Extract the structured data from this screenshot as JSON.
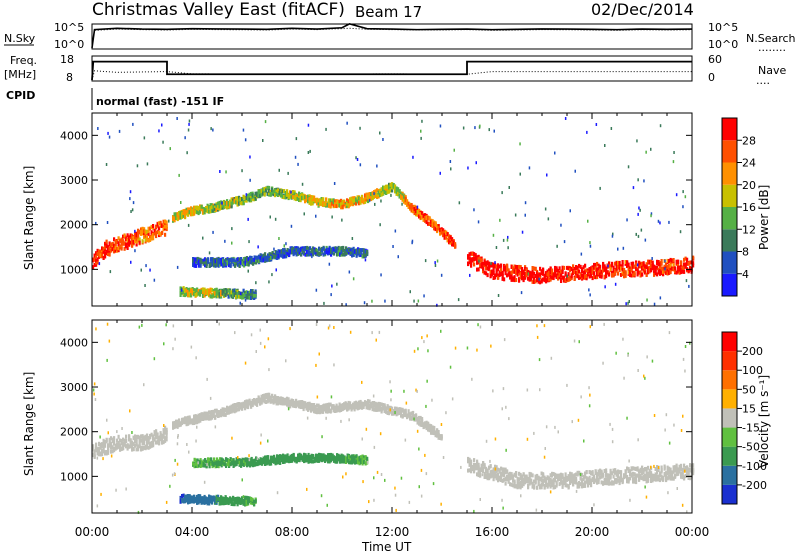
{
  "header": {
    "station": "Christmas Valley East (fitACF)",
    "beam": "Beam 17",
    "date": "02/Dec/2014"
  },
  "top_panels": {
    "nsky_label": "N.Sky",
    "nsky_max": "10^5",
    "nsky_min": "10^0",
    "nsearch_label": "N.Search",
    "nsearch_legend": "........",
    "freq_label_1": "Freq.",
    "freq_label_2": "[MHz]",
    "freq_max": "18",
    "freq_min": "8",
    "nave_label": "Nave",
    "nave_legend": "....",
    "nave_max": "60",
    "nave_min": "0",
    "cpid_label": "CPID",
    "cpid_text": "normal (fast) -151 IF"
  },
  "axes": {
    "ylabel": "Slant Range [km]",
    "xlabel": "Time UT",
    "xticks": [
      "00:00",
      "04:00",
      "08:00",
      "12:00",
      "16:00",
      "20:00",
      "00:00"
    ],
    "yticks": [
      "1000",
      "2000",
      "3000",
      "4000"
    ]
  },
  "colorbars": {
    "power": {
      "label": "Power [dB]",
      "ticks": [
        "4",
        "8",
        "12",
        "16",
        "20",
        "24",
        "28"
      ],
      "colors": [
        "#1a1aff",
        "#2050c0",
        "#3a7a5a",
        "#55b045",
        "#c8c000",
        "#ff9000",
        "#ff5000",
        "#ff0000"
      ]
    },
    "velocity": {
      "label": "Velocity [m s⁻¹]",
      "ticks": [
        "200",
        "100",
        "50",
        "15",
        "-15",
        "-50",
        "-100",
        "-200"
      ],
      "colors": [
        "#1a30d0",
        "#2a70a0",
        "#3a9a50",
        "#60c040",
        "#c0c0b8",
        "#ffb000",
        "#ff7000",
        "#ff3000",
        "#ff0000"
      ]
    }
  },
  "chart_data": [
    {
      "type": "line",
      "title": "N.Sky / N.Search",
      "x_range_hours": [
        0,
        24
      ],
      "x": [
        0,
        0.1,
        1,
        2,
        3,
        4,
        5,
        6,
        7,
        8,
        9,
        10,
        10.3,
        11,
        12,
        13,
        14,
        15,
        16,
        17,
        18,
        19,
        20,
        21,
        22,
        23,
        24
      ],
      "series": [
        {
          "name": "N.Sky",
          "values": [
            1,
            15000,
            30000,
            20000,
            18000,
            25000,
            22000,
            20000,
            18000,
            30000,
            20000,
            40000,
            300000,
            25000,
            20000,
            15000,
            18000,
            20000,
            15000,
            18000,
            22000,
            20000,
            18000,
            15000,
            20000,
            18000,
            20000
          ]
        },
        {
          "name": "N.Search",
          "values": [
            1,
            10000,
            20000,
            15000,
            12000,
            18000,
            15000,
            14000,
            12000,
            20000,
            15000,
            25000,
            30000,
            18000,
            15000,
            12000,
            12000,
            15000,
            10000,
            12000,
            15000,
            14000,
            12000,
            10000,
            14000,
            12000,
            14000
          ]
        }
      ]
    },
    {
      "type": "line",
      "title": "Freq. / Nave",
      "series": [
        {
          "name": "Freq. [MHz]",
          "x": [
            0,
            0.05,
            3.0,
            3.0,
            15.0,
            15.0,
            24
          ],
          "values": [
            8,
            16,
            16,
            10.5,
            10.5,
            16,
            16
          ]
        },
        {
          "name": "Nave",
          "x": [
            0,
            0.1,
            1,
            3,
            4,
            8,
            12,
            15,
            16,
            20,
            24
          ],
          "values": [
            0,
            24,
            20,
            22,
            16,
            15,
            16,
            15,
            22,
            22,
            22
          ]
        }
      ]
    },
    {
      "type": "heatmap",
      "title": "Power [dB]",
      "xlabel": "Time UT",
      "ylabel": "Slant Range [km]",
      "x_range_hours": [
        0,
        24
      ],
      "ylim": [
        180,
        4500
      ],
      "zlim": [
        0,
        30
      ],
      "features": [
        {
          "name": "near range band",
          "x": [
            0,
            0.5,
            1,
            1.5,
            2,
            2.5,
            3
          ],
          "range_center_km": [
            1200,
            1500,
            1600,
            1700,
            1800,
            1900,
            2000
          ],
          "power_db": [
            28,
            26,
            24,
            26,
            22,
            24,
            26
          ]
        },
        {
          "name": "F region arc",
          "x": [
            3.2,
            4,
            5,
            6,
            7,
            8,
            9,
            10,
            11,
            12,
            12.8,
            13.5,
            14.5
          ],
          "range_center_km": [
            2200,
            2350,
            2450,
            2600,
            2800,
            2700,
            2550,
            2500,
            2650,
            2900,
            2400,
            2100,
            1600
          ],
          "power_db": [
            16,
            18,
            16,
            14,
            12,
            16,
            18,
            20,
            18,
            14,
            22,
            24,
            26
          ]
        },
        {
          "name": "far range band",
          "x": [
            15,
            16,
            17,
            18,
            19,
            20,
            21,
            22,
            23,
            24
          ],
          "range_center_km": [
            1300,
            1000,
            950,
            900,
            950,
            1000,
            1050,
            1050,
            1100,
            1150
          ],
          "power_db": [
            28,
            30,
            28,
            30,
            28,
            28,
            26,
            28,
            26,
            28
          ]
        },
        {
          "name": "mid range patch",
          "x": [
            4,
            6,
            8,
            10,
            11
          ],
          "range_center_km": [
            1200,
            1200,
            1450,
            1450,
            1400
          ],
          "power_db": [
            6,
            8,
            6,
            8,
            6
          ]
        },
        {
          "name": "ground scatter",
          "x": [
            3.5,
            4.5,
            5.5,
            6.5
          ],
          "range_center_km": [
            550,
            520,
            500,
            480
          ],
          "power_db": [
            14,
            18,
            12,
            8
          ]
        }
      ]
    },
    {
      "type": "heatmap",
      "title": "Velocity [m s⁻¹]",
      "xlabel": "Time UT",
      "ylabel": "Slant Range [km]",
      "x_range_hours": [
        0,
        24
      ],
      "ylim": [
        180,
        4500
      ],
      "zlim": [
        -200,
        200
      ],
      "features": [
        {
          "name": "near range band",
          "x": [
            0,
            1,
            2,
            3
          ],
          "range_center_km": [
            1600,
            1800,
            1800,
            2000
          ],
          "velocity_ms": [
            0,
            0,
            -5,
            0
          ]
        },
        {
          "name": "F region arc",
          "x": [
            3.2,
            5,
            7,
            9,
            11,
            12.8,
            14
          ],
          "range_center_km": [
            2200,
            2450,
            2800,
            2550,
            2650,
            2400,
            1900
          ],
          "velocity_ms": [
            0,
            0,
            5,
            0,
            0,
            -5,
            0
          ]
        },
        {
          "name": "far range band",
          "x": [
            15,
            17,
            19,
            21,
            24
          ],
          "range_center_km": [
            1300,
            950,
            950,
            1050,
            1150
          ],
          "velocity_ms": [
            0,
            0,
            0,
            0,
            0
          ]
        },
        {
          "name": "mid range patch",
          "x": [
            4,
            6,
            8,
            10,
            11
          ],
          "range_center_km": [
            1350,
            1350,
            1450,
            1450,
            1400
          ],
          "velocity_ms": [
            30,
            40,
            60,
            40,
            30
          ]
        },
        {
          "name": "ground scatter",
          "x": [
            3.5,
            4.5,
            5.5,
            6.5
          ],
          "range_center_km": [
            550,
            520,
            500,
            480
          ],
          "velocity_ms": [
            150,
            100,
            50,
            30
          ]
        }
      ]
    }
  ]
}
